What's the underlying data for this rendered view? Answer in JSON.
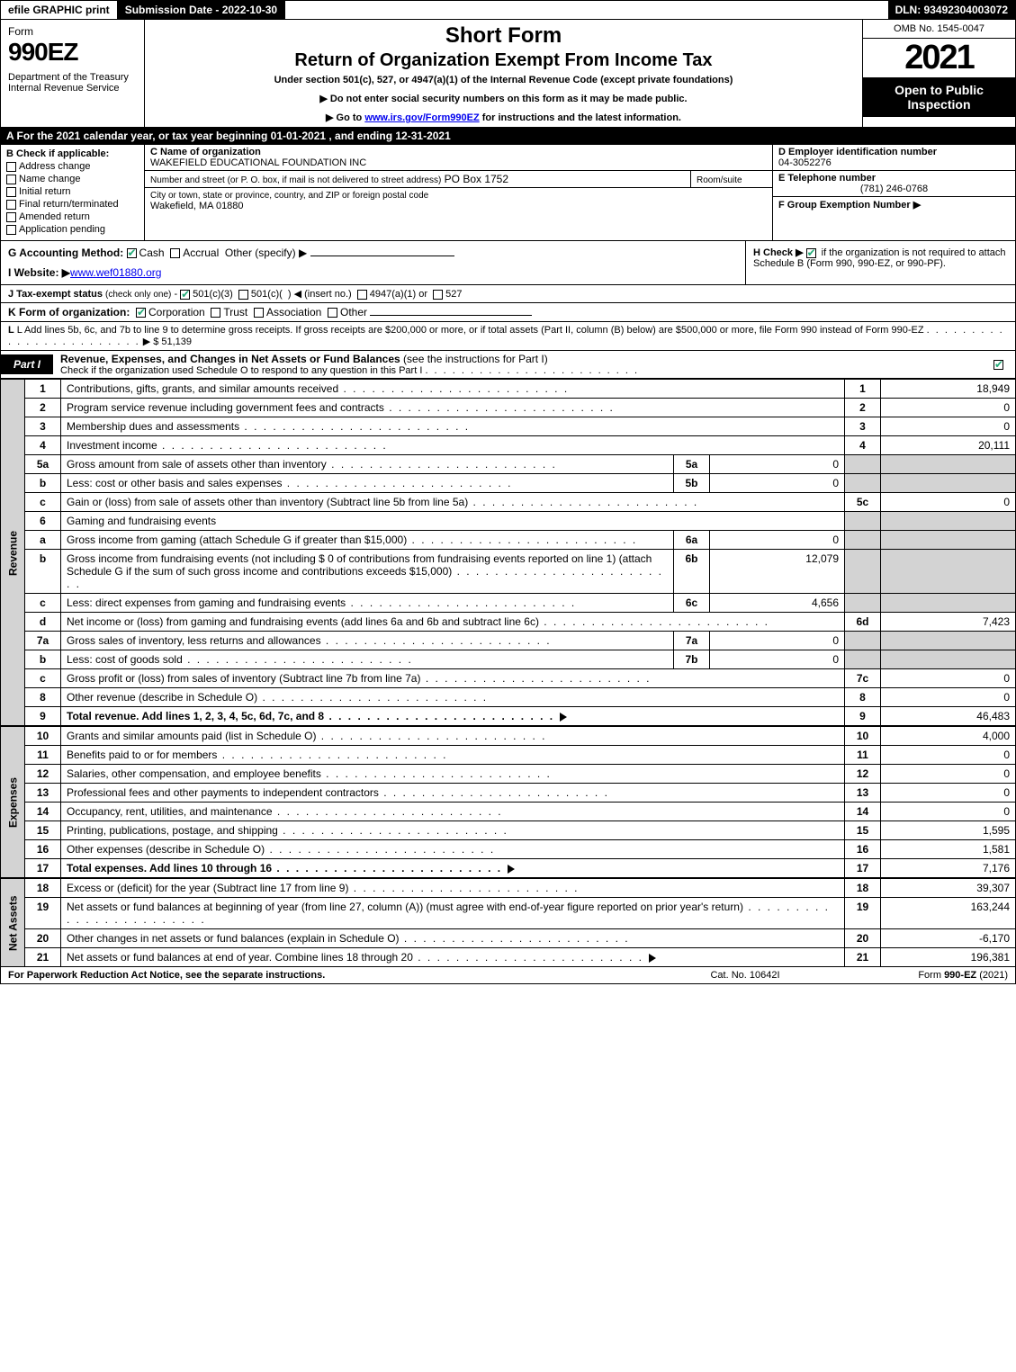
{
  "topbar": {
    "efile": "efile GRAPHIC print",
    "submission": "Submission Date - 2022-10-30",
    "dln": "DLN: 93492304003072"
  },
  "header": {
    "form_label": "Form",
    "form_no": "990EZ",
    "dept": "Department of the Treasury\nInternal Revenue Service",
    "short": "Short Form",
    "ret": "Return of Organization Exempt From Income Tax",
    "under": "Under section 501(c), 527, or 4947(a)(1) of the Internal Revenue Code (except private foundations)",
    "bullet1": "▶ Do not enter social security numbers on this form as it may be made public.",
    "bullet2_pre": "▶ Go to ",
    "bullet2_link": "www.irs.gov/Form990EZ",
    "bullet2_post": " for instructions and the latest information.",
    "omb": "OMB No. 1545-0047",
    "year": "2021",
    "open": "Open to Public Inspection"
  },
  "row_a": "A  For the 2021 calendar year, or tax year beginning 01-01-2021 , and ending 12-31-2021",
  "col_b": {
    "title": "B  Check if applicable:",
    "opts": [
      "Address change",
      "Name change",
      "Initial return",
      "Final return/terminated",
      "Amended return",
      "Application pending"
    ]
  },
  "col_c": {
    "name_lbl": "C Name of organization",
    "name": "WAKEFIELD EDUCATIONAL FOUNDATION INC",
    "street_lbl": "Number and street (or P. O. box, if mail is not delivered to street address)",
    "street": "PO Box 1752",
    "room_lbl": "Room/suite",
    "room": "",
    "city_lbl": "City or town, state or province, country, and ZIP or foreign postal code",
    "city": "Wakefield, MA  01880"
  },
  "col_def": {
    "d_lbl": "D Employer identification number",
    "d_val": "04-3052276",
    "e_lbl": "E Telephone number",
    "e_val": "(781) 246-0768",
    "f_lbl": "F Group Exemption Number  ▶",
    "f_val": ""
  },
  "row_g": {
    "g_lbl": "G Accounting Method:",
    "g_opts_cash": "Cash",
    "g_opts_accrual": "Accrual",
    "g_opts_other": "Other (specify) ▶",
    "i_lbl": "I Website: ▶",
    "i_val": "www.wef01880.org",
    "h_text_pre": "H  Check ▶ ",
    "h_text": " if the organization is not required to attach Schedule B (Form 990, 990-EZ, or 990-PF)."
  },
  "tax_status": "J Tax-exempt status (check only one) - ☑ 501(c)(3)  ◯ 501(c)(  ) ◀ (insert no.)  ◯ 4947(a)(1) or  ◯ 527",
  "k_org": {
    "lbl": "K Form of organization:",
    "opts": [
      "Corporation",
      "Trust",
      "Association",
      "Other"
    ],
    "checked": 0
  },
  "l_row": {
    "text": "L Add lines 5b, 6c, and 7b to line 9 to determine gross receipts. If gross receipts are $200,000 or more, or if total assets (Part II, column (B) below) are $500,000 or more, file Form 990 instead of Form 990-EZ",
    "val": "▶ $ 51,139"
  },
  "part1": {
    "tab": "Part I",
    "title": "Revenue, Expenses, and Changes in Net Assets or Fund Balances",
    "title_suffix": " (see the instructions for Part I)",
    "sub": "Check if the organization used Schedule O to respond to any question in this Part I"
  },
  "sections": {
    "revenue": "Revenue",
    "expenses": "Expenses",
    "netassets": "Net Assets"
  },
  "lines": [
    {
      "n": "1",
      "desc": "Contributions, gifts, grants, and similar amounts received",
      "r": "1",
      "val": "18,949"
    },
    {
      "n": "2",
      "desc": "Program service revenue including government fees and contracts",
      "r": "2",
      "val": "0"
    },
    {
      "n": "3",
      "desc": "Membership dues and assessments",
      "r": "3",
      "val": "0"
    },
    {
      "n": "4",
      "desc": "Investment income",
      "r": "4",
      "val": "20,111"
    },
    {
      "n": "5a",
      "desc": "Gross amount from sale of assets other than inventory",
      "sub": "5a",
      "subval": "0"
    },
    {
      "n": "b",
      "desc": "Less: cost or other basis and sales expenses",
      "sub": "5b",
      "subval": "0"
    },
    {
      "n": "c",
      "desc": "Gain or (loss) from sale of assets other than inventory (Subtract line 5b from line 5a)",
      "r": "5c",
      "val": "0"
    },
    {
      "n": "6",
      "desc": "Gaming and fundraising events",
      "grey": true
    },
    {
      "n": "a",
      "desc": "Gross income from gaming (attach Schedule G if greater than $15,000)",
      "sub": "6a",
      "subval": "0"
    },
    {
      "n": "b",
      "desc": "Gross income from fundraising events (not including $ 0 of contributions from fundraising events reported on line 1) (attach Schedule G if the sum of such gross income and contributions exceeds $15,000)",
      "sub": "6b",
      "subval": "12,079"
    },
    {
      "n": "c",
      "desc": "Less: direct expenses from gaming and fundraising events",
      "sub": "6c",
      "subval": "4,656"
    },
    {
      "n": "d",
      "desc": "Net income or (loss) from gaming and fundraising events (add lines 6a and 6b and subtract line 6c)",
      "r": "6d",
      "val": "7,423"
    },
    {
      "n": "7a",
      "desc": "Gross sales of inventory, less returns and allowances",
      "sub": "7a",
      "subval": "0"
    },
    {
      "n": "b",
      "desc": "Less: cost of goods sold",
      "sub": "7b",
      "subval": "0"
    },
    {
      "n": "c",
      "desc": "Gross profit or (loss) from sales of inventory (Subtract line 7b from line 7a)",
      "r": "7c",
      "val": "0"
    },
    {
      "n": "8",
      "desc": "Other revenue (describe in Schedule O)",
      "r": "8",
      "val": "0"
    },
    {
      "n": "9",
      "desc": "Total revenue. Add lines 1, 2, 3, 4, 5c, 6d, 7c, and 8",
      "r": "9",
      "val": "46,483",
      "bold": true,
      "arrow": true
    }
  ],
  "exp_lines": [
    {
      "n": "10",
      "desc": "Grants and similar amounts paid (list in Schedule O)",
      "r": "10",
      "val": "4,000"
    },
    {
      "n": "11",
      "desc": "Benefits paid to or for members",
      "r": "11",
      "val": "0"
    },
    {
      "n": "12",
      "desc": "Salaries, other compensation, and employee benefits",
      "r": "12",
      "val": "0"
    },
    {
      "n": "13",
      "desc": "Professional fees and other payments to independent contractors",
      "r": "13",
      "val": "0"
    },
    {
      "n": "14",
      "desc": "Occupancy, rent, utilities, and maintenance",
      "r": "14",
      "val": "0"
    },
    {
      "n": "15",
      "desc": "Printing, publications, postage, and shipping",
      "r": "15",
      "val": "1,595"
    },
    {
      "n": "16",
      "desc": "Other expenses (describe in Schedule O)",
      "r": "16",
      "val": "1,581"
    },
    {
      "n": "17",
      "desc": "Total expenses. Add lines 10 through 16",
      "r": "17",
      "val": "7,176",
      "bold": true,
      "arrow": true
    }
  ],
  "na_lines": [
    {
      "n": "18",
      "desc": "Excess or (deficit) for the year (Subtract line 17 from line 9)",
      "r": "18",
      "val": "39,307"
    },
    {
      "n": "19",
      "desc": "Net assets or fund balances at beginning of year (from line 27, column (A)) (must agree with end-of-year figure reported on prior year's return)",
      "r": "19",
      "val": "163,244"
    },
    {
      "n": "20",
      "desc": "Other changes in net assets or fund balances (explain in Schedule O)",
      "r": "20",
      "val": "-6,170"
    },
    {
      "n": "21",
      "desc": "Net assets or fund balances at end of year. Combine lines 18 through 20",
      "r": "21",
      "val": "196,381",
      "arrow": true
    }
  ],
  "footer": {
    "left": "For Paperwork Reduction Act Notice, see the separate instructions.",
    "center": "Cat. No. 10642I",
    "right_pre": "Form ",
    "right_bold": "990-EZ",
    "right_post": " (2021)"
  }
}
